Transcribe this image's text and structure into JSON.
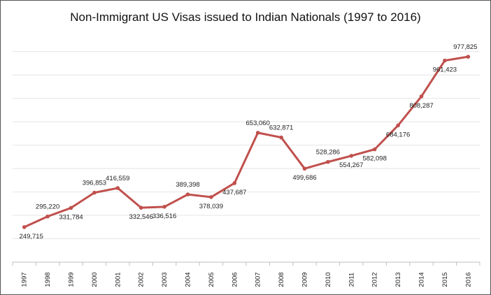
{
  "chart_data": {
    "type": "line",
    "title": "Non-Immigrant US Visas issued to Indian Nationals (1997 to 2016)",
    "xlabel": "",
    "ylabel": "",
    "x": [
      "1997",
      "1998",
      "1999",
      "2000",
      "2001",
      "2002",
      "2003",
      "2004",
      "2005",
      "2006",
      "2007",
      "2008",
      "2009",
      "2010",
      "2011",
      "2012",
      "2013",
      "2014",
      "2015",
      "2016"
    ],
    "values": [
      249715,
      295220,
      331784,
      396853,
      416559,
      332546,
      336516,
      389398,
      378039,
      437687,
      653060,
      632871,
      499686,
      528286,
      554267,
      582098,
      684176,
      808287,
      961423,
      977825
    ],
    "data_labels": [
      "249,715",
      "295,220",
      "331,784",
      "396,853",
      "416,559",
      "332,546",
      "336,516",
      "389,398",
      "378,039",
      "437,687",
      "653,060",
      "632,871",
      "499,686",
      "528,286",
      "554,267",
      "582,098",
      "684,176",
      "808,287",
      "961,423",
      "977,825"
    ],
    "ylim": [
      100000,
      1050000
    ],
    "grid": true,
    "y_tick_labels_shown": false,
    "line_color": "#C0504D",
    "legend": "none"
  }
}
